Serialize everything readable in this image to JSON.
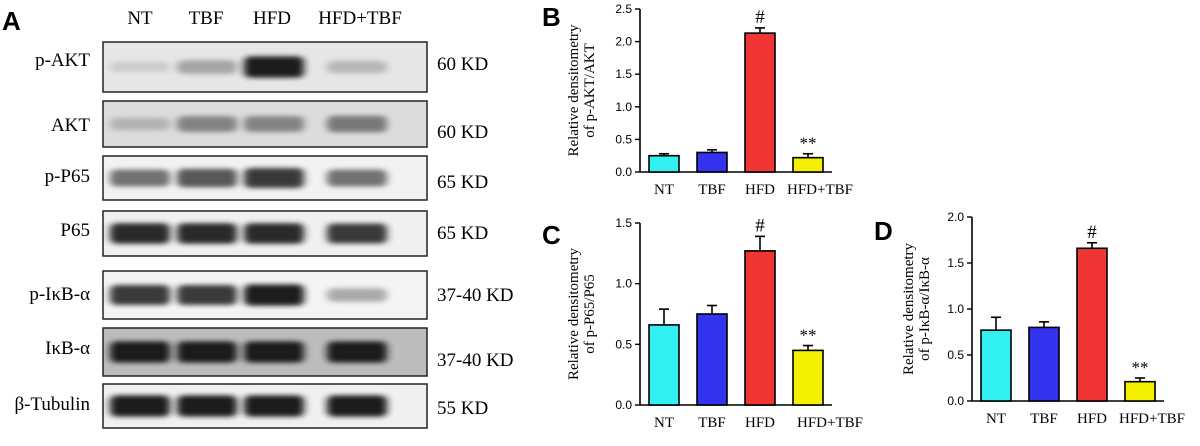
{
  "panel_a": {
    "letter": "A",
    "lanes": [
      "NT",
      "TBF",
      "HFD",
      "HFD+TBF"
    ],
    "blots": [
      {
        "protein": "p-AKT",
        "kd": "60 KD",
        "intensities": [
          0.15,
          0.4,
          0.95,
          0.3
        ]
      },
      {
        "protein": "AKT",
        "kd": "60 KD",
        "intensities": [
          0.3,
          0.55,
          0.55,
          0.6
        ]
      },
      {
        "protein": "p-P65",
        "kd": "65 KD",
        "intensities": [
          0.65,
          0.75,
          0.85,
          0.65
        ]
      },
      {
        "protein": "P65",
        "kd": "65 KD",
        "intensities": [
          0.9,
          0.9,
          0.9,
          0.85
        ]
      },
      {
        "protein": "p-IκB-α",
        "kd": "37-40 KD",
        "intensities": [
          0.85,
          0.85,
          0.95,
          0.4
        ]
      },
      {
        "protein": "IκB-α",
        "kd": "37-40 KD",
        "intensities": [
          0.95,
          0.95,
          0.95,
          0.95
        ]
      },
      {
        "protein": "β-Tubulin",
        "kd": "55 KD",
        "intensities": [
          0.95,
          0.95,
          0.95,
          0.95
        ]
      }
    ]
  },
  "chart_data": [
    {
      "panel": "B",
      "type": "bar",
      "categories": [
        "NT",
        "TBF",
        "HFD",
        "HFD+TBF"
      ],
      "values": [
        0.25,
        0.3,
        2.13,
        0.22
      ],
      "errors": [
        0.03,
        0.04,
        0.08,
        0.06
      ],
      "annotations": [
        "",
        "",
        "#",
        "**"
      ],
      "colors": [
        "#33f0f0",
        "#3333ee",
        "#f03535",
        "#f5f000"
      ],
      "ylabel_lines": [
        "Relative densitometry",
        "of p-AKT/AKT"
      ],
      "ylim": [
        0,
        2.5
      ],
      "yticks": [
        "0.0",
        "0.5",
        "1.0",
        "1.5",
        "2.0",
        "2.5"
      ]
    },
    {
      "panel": "C",
      "type": "bar",
      "categories": [
        "NT",
        "TBF",
        "HFD",
        "HFD+TBF"
      ],
      "values": [
        0.66,
        0.75,
        1.27,
        0.45
      ],
      "errors": [
        0.13,
        0.07,
        0.12,
        0.04
      ],
      "annotations": [
        "",
        "",
        "#",
        "**"
      ],
      "colors": [
        "#33f0f0",
        "#3333ee",
        "#f03535",
        "#f5f000"
      ],
      "ylabel_lines": [
        "Relative densitometry",
        "of p-P65/P65"
      ],
      "ylim": [
        0,
        1.5
      ],
      "yticks": [
        "0.0",
        "0.5",
        "1.0",
        "1.5"
      ]
    },
    {
      "panel": "D",
      "type": "bar",
      "categories": [
        "NT",
        "TBF",
        "HFD",
        "HFD+TBF"
      ],
      "values": [
        0.77,
        0.8,
        1.66,
        0.21
      ],
      "errors": [
        0.14,
        0.06,
        0.06,
        0.04
      ],
      "annotations": [
        "",
        "",
        "#",
        "**"
      ],
      "colors": [
        "#33f0f0",
        "#3333ee",
        "#f03535",
        "#f5f000"
      ],
      "ylabel_lines": [
        "Relative densitometry",
        "of p-IκB-α/IκB-α"
      ],
      "ylim": [
        0,
        2.0
      ],
      "yticks": [
        "0.0",
        "0.5",
        "1.0",
        "1.5",
        "2.0"
      ]
    }
  ]
}
